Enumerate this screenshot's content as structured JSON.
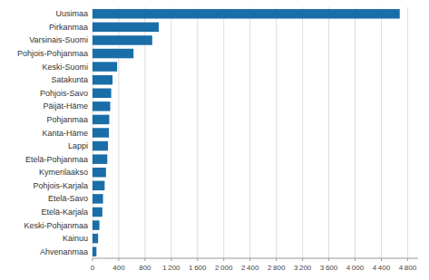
{
  "chart_data": {
    "type": "bar",
    "orientation": "horizontal",
    "categories": [
      "Ahvenanmaa",
      "Kainuu",
      "Keski-Pohjanmaa",
      "Etelä-Karjala",
      "Etelä-Savo",
      "Pohjois-Karjala",
      "Kymenlaakso",
      "Etelä-Pohjanmaa",
      "Lappi",
      "Kanta-Häme",
      "Pohjanmaa",
      "Päijät-Häme",
      "Pohjois-Savo",
      "Satakunta",
      "Keski-Suomi",
      "Pohjois-Pohjanmaa",
      "Varsinais-Suomi",
      "Pirkanmaa",
      "Uusimaa"
    ],
    "values": [
      60,
      85,
      105,
      150,
      160,
      185,
      205,
      225,
      235,
      250,
      255,
      270,
      285,
      305,
      375,
      625,
      910,
      1010,
      4680
    ],
    "color": "#1a6ea8",
    "xlim": [
      0,
      4960
    ],
    "xticks": [
      0,
      400,
      800,
      {
        "value": 1200,
        "label": "1 200"
      },
      {
        "value": 1600,
        "label": "1 600"
      },
      {
        "value": 2000,
        "label": "2 000"
      },
      {
        "value": 2400,
        "label": "2 400"
      },
      {
        "value": 2800,
        "label": "2 800"
      },
      {
        "value": 3200,
        "label": "3 200"
      },
      {
        "value": 3600,
        "label": "3 600"
      },
      {
        "value": 4000,
        "label": "4 000"
      },
      {
        "value": 4400,
        "label": "4 400"
      },
      {
        "value": 4800,
        "label": "4 800"
      }
    ],
    "grid": true
  }
}
